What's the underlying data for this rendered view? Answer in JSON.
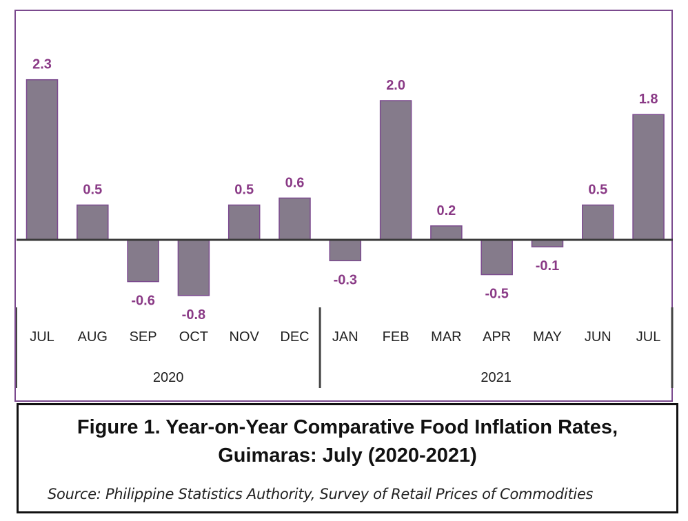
{
  "chart_data": {
    "type": "bar",
    "categories": [
      "JUL",
      "AUG",
      "SEP",
      "OCT",
      "NOV",
      "DEC",
      "JAN",
      "FEB",
      "MAR",
      "APR",
      "MAY",
      "JUN",
      "JUL"
    ],
    "values": [
      2.3,
      0.5,
      -0.6,
      -0.8,
      0.5,
      0.6,
      -0.3,
      2.0,
      0.2,
      -0.5,
      -0.1,
      0.5,
      1.8
    ],
    "value_labels": [
      "2.3",
      "0.5",
      "-0.6",
      "-0.8",
      "0.5",
      "0.6",
      "-0.3",
      "2.0",
      "0.2",
      "-0.5",
      "-0.1",
      "0.5",
      "1.8"
    ],
    "groups": [
      {
        "label": "2020",
        "count": 6
      },
      {
        "label": "2021",
        "count": 7
      }
    ],
    "title": "",
    "xlabel": "",
    "ylabel": "",
    "ylim": [
      -1.0,
      2.6
    ],
    "grid": false,
    "legend": "none",
    "colors": {
      "bar_fill": "#857b8b",
      "bar_stroke": "#7b4a8e",
      "label_color": "#8a3a86",
      "frame": "#7b4a8e",
      "axis": "#3a3a3a"
    }
  },
  "caption": {
    "title_line1": "Figure 1. Year-on-Year Comparative Food Inflation Rates,",
    "title_line2": "Guimaras: July (2020-2021)",
    "source": "Source: Philippine Statistics Authority, Survey of Retail Prices of Commodities"
  }
}
